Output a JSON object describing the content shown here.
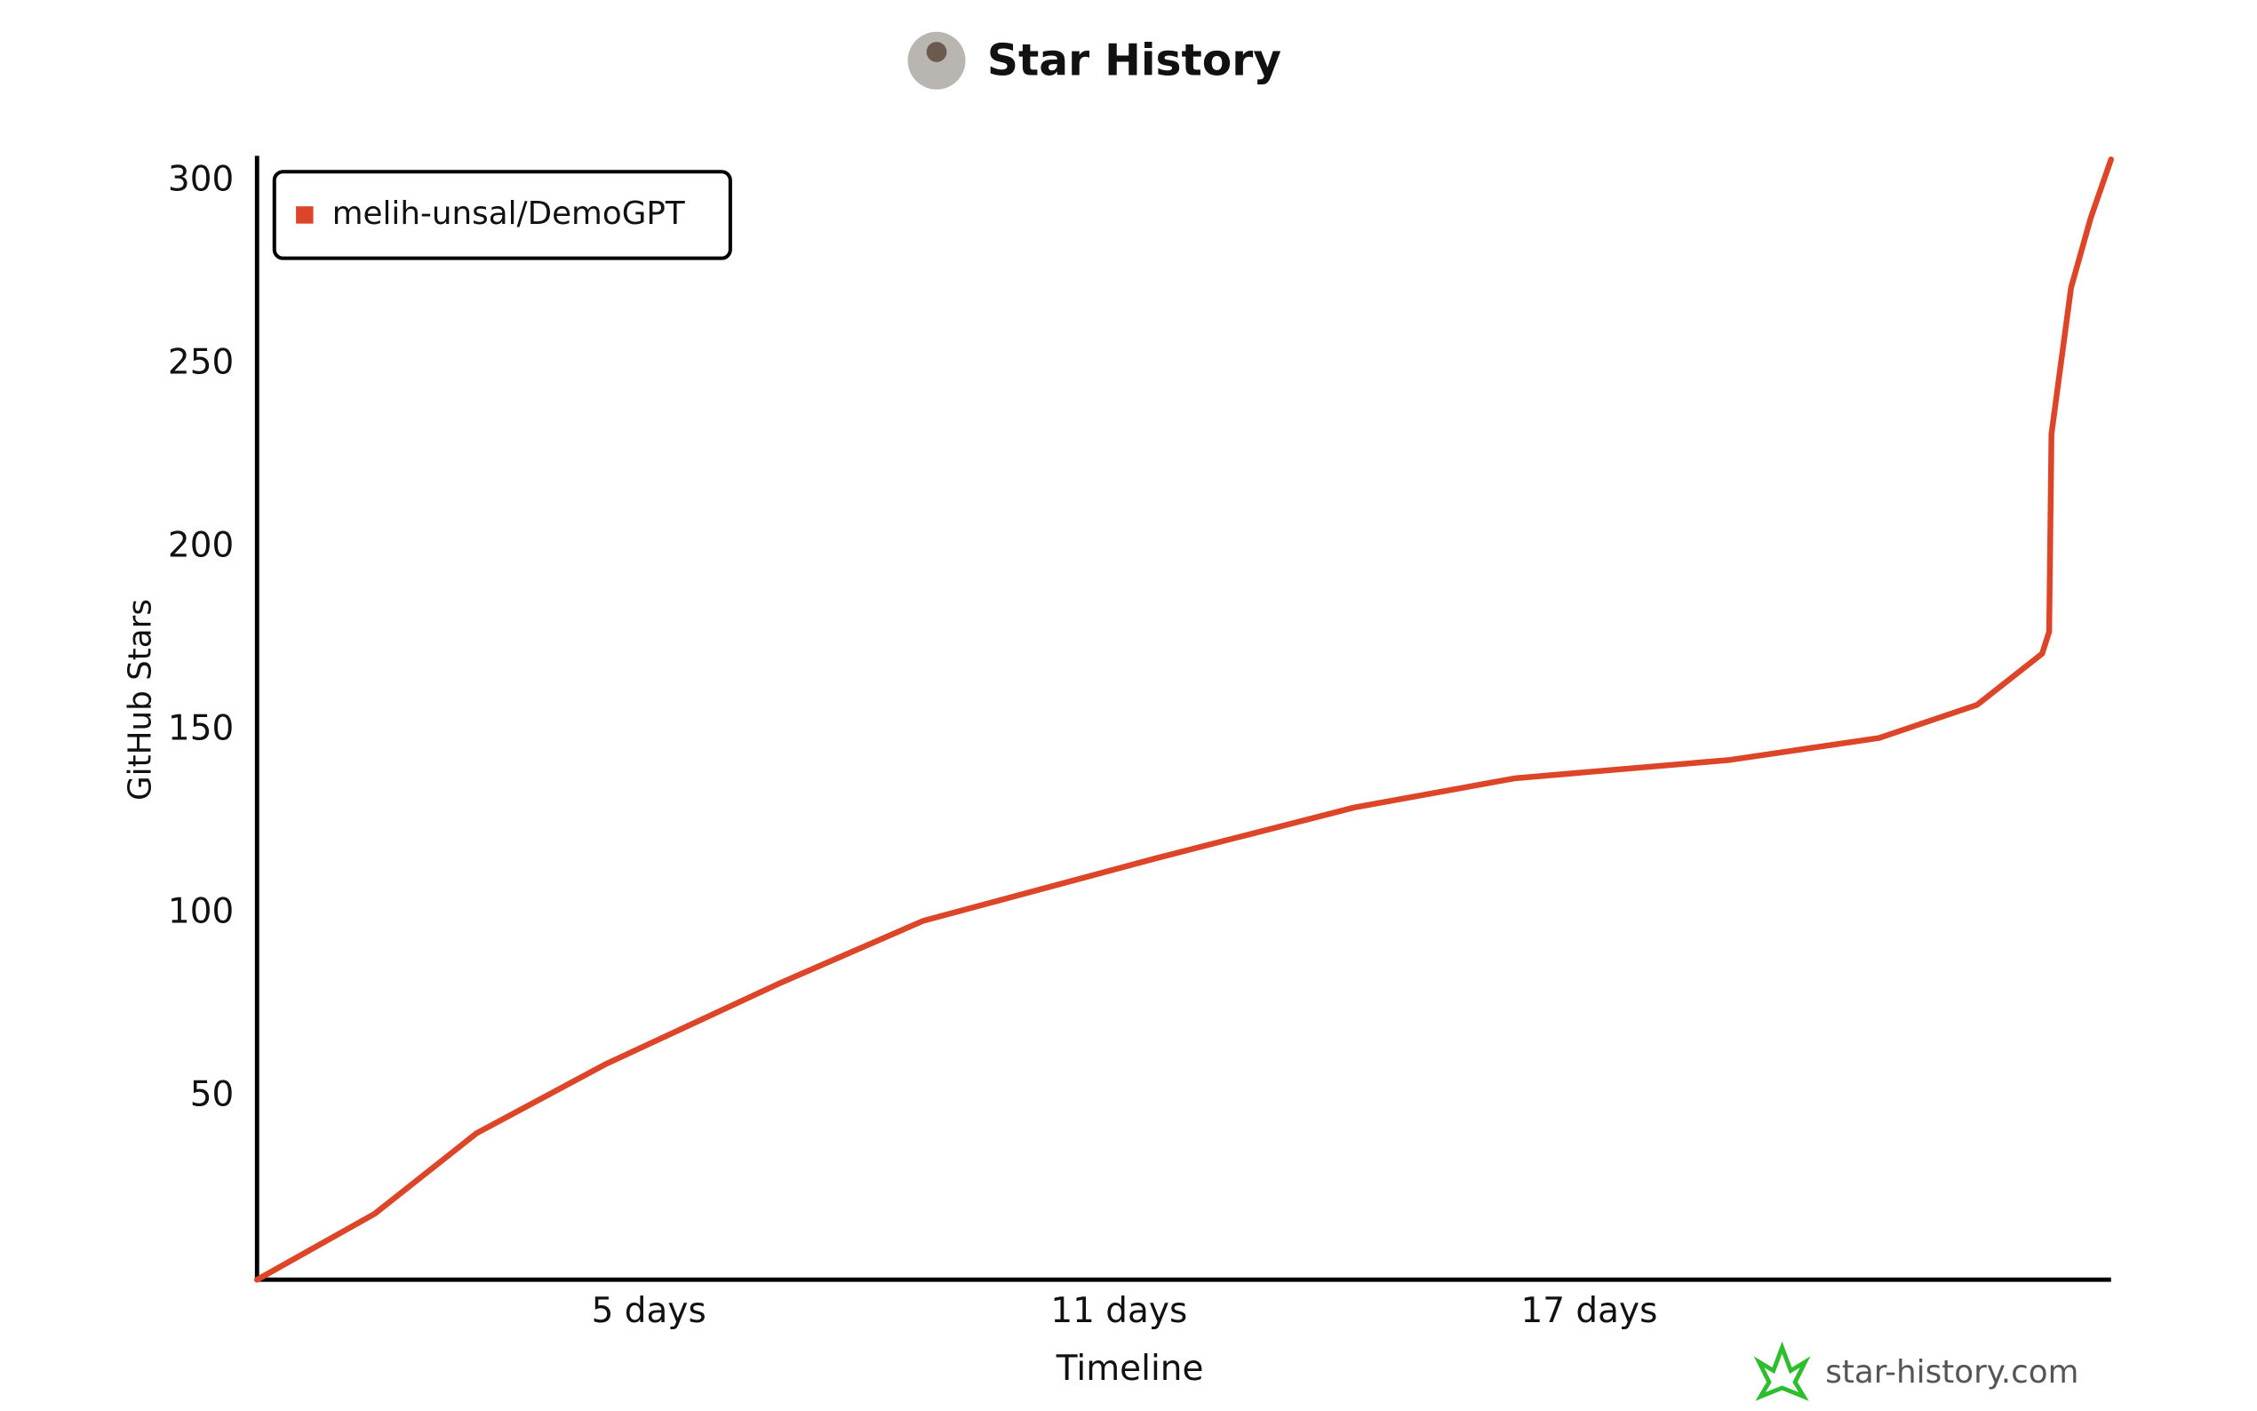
{
  "chart_data": {
    "type": "line",
    "title": "Star History",
    "xlabel": "Timeline",
    "ylabel": "GitHub Stars",
    "watermark": "star-history.com",
    "x": [
      0,
      1.5,
      2.8,
      4.46,
      6.67,
      8.5,
      11.45,
      14.0,
      16.06,
      18.8,
      20.7,
      21.95,
      22.78,
      22.87,
      22.9,
      23.15,
      23.4,
      23.66
    ],
    "series": [
      {
        "name": "melih-unsal/DemoGPT",
        "color": "#dd4528",
        "values": [
          0,
          18,
          40,
          59,
          81,
          98,
          115,
          129,
          137,
          142,
          148,
          157,
          171,
          177,
          231,
          271,
          290,
          306
        ]
      }
    ],
    "xlim": [
      0,
      23.66
    ],
    "ylim": [
      0,
      307
    ],
    "xticks": [
      {
        "value": 5,
        "label": "5 days"
      },
      {
        "value": 11,
        "label": "11 days"
      },
      {
        "value": 17,
        "label": "17 days"
      }
    ],
    "yticks": [
      50,
      100,
      150,
      200,
      250,
      300
    ],
    "grid": false,
    "legend": "upper left"
  }
}
